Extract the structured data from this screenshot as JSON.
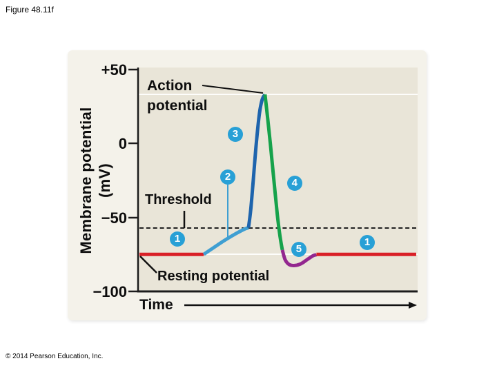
{
  "figure_label": "Figure 48.11f",
  "copyright": "© 2014 Pearson Education, Inc.",
  "labels": {
    "action_potential": "Action\npotential",
    "threshold": "Threshold",
    "resting_potential": "Resting potential",
    "y_axis": "Membrane potential\n(mV)"
  },
  "colors": {
    "stage_circle": "#28a0d6",
    "stage_number": "#ffffff",
    "plot_background": "#e9e5d8",
    "card_background": "#f4f2ea",
    "resting_red": "#d92027",
    "depolarization_lightblue": "#3f9fd2",
    "rising_blue": "#1e64ad",
    "falling_green": "#16a24b",
    "undershoot_purple": "#93278f"
  },
  "chart_data": {
    "type": "line",
    "title": "",
    "xlabel": "Time",
    "ylabel": "Membrane potential (mV)",
    "ylim": [
      -100,
      50
    ],
    "xlim": [
      0,
      100
    ],
    "x_axis_numeric": false,
    "grid": "white lines at peak (+33 mV) and resting (-75 mV) levels",
    "legend": "none",
    "yticks": [
      "+50",
      "0",
      "−50",
      "−100"
    ],
    "ytick_values": [
      50,
      0,
      -50,
      -100
    ],
    "threshold_mV": -57,
    "resting_mV": -75,
    "peak_mV": 33,
    "undershoot_min_mV": -82.5,
    "gridlines_mV": [
      33,
      -75
    ],
    "annotations": [
      {
        "text": "Action potential",
        "points_to": "peak of spike"
      },
      {
        "text": "Threshold",
        "points_to": "dashed line at -57 mV"
      },
      {
        "text": "Resting potential",
        "points_to": "red baseline at -75 mV"
      }
    ],
    "series": [
      {
        "name": "resting-potential-before",
        "color": "#d92027",
        "points": [
          [
            0.5,
            -75
          ],
          [
            23.5,
            -75
          ]
        ]
      },
      {
        "name": "depolarization-to-threshold",
        "color": "#3f9fd2",
        "points": [
          [
            23.5,
            -75
          ],
          [
            27,
            -70.5
          ],
          [
            31,
            -65.5
          ],
          [
            35,
            -61
          ],
          [
            38,
            -58
          ],
          [
            39.5,
            -57
          ]
        ]
      },
      {
        "name": "rising-phase",
        "color": "#1e64ad",
        "points": [
          [
            39.5,
            -57
          ],
          [
            40.3,
            -45
          ],
          [
            41.2,
            -25
          ],
          [
            42.3,
            0
          ],
          [
            43.4,
            20
          ],
          [
            44.4,
            29.5
          ],
          [
            45.4,
            33
          ]
        ]
      },
      {
        "name": "falling-phase",
        "color": "#16a24b",
        "points": [
          [
            45.4,
            33
          ],
          [
            46.3,
            18
          ],
          [
            47.3,
            0
          ],
          [
            48.6,
            -25
          ],
          [
            49.8,
            -48
          ],
          [
            50.8,
            -63
          ],
          [
            51.6,
            -72
          ]
        ]
      },
      {
        "name": "undershoot",
        "color": "#93278f",
        "points": [
          [
            51.6,
            -72
          ],
          [
            52.6,
            -78.5
          ],
          [
            54,
            -81.8
          ],
          [
            56,
            -82.5
          ],
          [
            58.3,
            -81.3
          ],
          [
            60.5,
            -78.5
          ],
          [
            62.5,
            -76
          ],
          [
            63.8,
            -75.2
          ]
        ]
      },
      {
        "name": "resting-potential-after",
        "color": "#d92027",
        "points": [
          [
            63.8,
            -75
          ],
          [
            99.5,
            -75
          ]
        ]
      }
    ],
    "stages": [
      {
        "num": "1",
        "t": 14.1,
        "mV": -64.7
      },
      {
        "num": "2",
        "t": 32.1,
        "mV": -22.8
      },
      {
        "num": "3",
        "t": 34.8,
        "mV": 6.0
      },
      {
        "num": "4",
        "t": 56.0,
        "mV": -27.0
      },
      {
        "num": "5",
        "t": 57.5,
        "mV": -71.6
      },
      {
        "num": "1",
        "t": 82.0,
        "mV": -67.0
      }
    ]
  }
}
